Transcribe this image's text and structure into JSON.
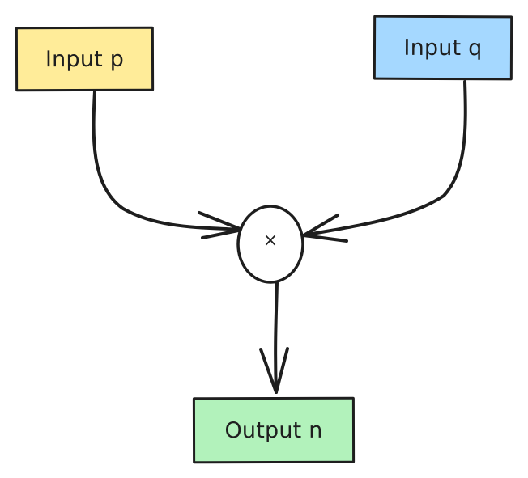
{
  "diagram": {
    "nodes": [
      {
        "id": "p",
        "label": "Input p",
        "fill": "#ffec99"
      },
      {
        "id": "q",
        "label": "Input q",
        "fill": "#a5d8ff"
      },
      {
        "id": "op",
        "label": "×",
        "shape": "circle",
        "fill": "#ffffff"
      },
      {
        "id": "n",
        "label": "Output n",
        "fill": "#b2f2bb"
      }
    ],
    "edges": [
      {
        "from": "p",
        "to": "op"
      },
      {
        "from": "q",
        "to": "op"
      },
      {
        "from": "op",
        "to": "n"
      }
    ],
    "stroke_color": "#1e1e1e"
  }
}
